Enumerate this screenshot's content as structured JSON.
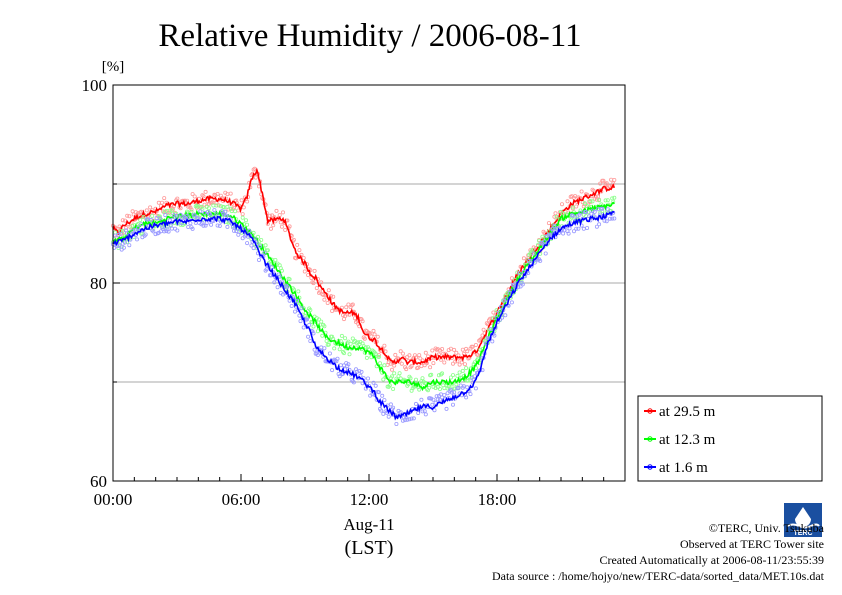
{
  "chart_data": {
    "type": "line",
    "title": "Relative Humidity / 2006-08-11",
    "ylabel": "[%]",
    "xlabel": "Aug-11",
    "xlabel2": "(LST)",
    "xlim": [
      0,
      24
    ],
    "ylim": [
      60,
      100
    ],
    "grid": true,
    "legend_position": "right",
    "x_ticks": [
      {
        "value": 0,
        "label": "00:00"
      },
      {
        "value": 6,
        "label": "06:00"
      },
      {
        "value": 12,
        "label": "12:00"
      },
      {
        "value": 18,
        "label": "18:00"
      }
    ],
    "y_ticks": [
      {
        "value": 60,
        "label": "60"
      },
      {
        "value": 80,
        "label": "80"
      },
      {
        "value": 100,
        "label": "100"
      }
    ],
    "gridlines_y": [
      70,
      80,
      90
    ],
    "series": [
      {
        "name": "at 29.5 m",
        "color": "#ff0000",
        "x": [
          0,
          0.25,
          0.5,
          1,
          1.5,
          2,
          2.5,
          3,
          3.5,
          4,
          4.5,
          5,
          5.5,
          6,
          6.25,
          6.5,
          6.75,
          7,
          7.25,
          7.5,
          7.75,
          8,
          8.25,
          8.5,
          8.75,
          9,
          9.25,
          9.5,
          9.75,
          10,
          10.25,
          10.5,
          10.75,
          11,
          11.25,
          11.5,
          11.75,
          12,
          12.25,
          12.5,
          12.75,
          13,
          13.25,
          13.5,
          13.75,
          14,
          14.5,
          15,
          15.5,
          16,
          16.5,
          17,
          17.25,
          17.5,
          17.75,
          18,
          18.5,
          19,
          19.5,
          20,
          20.5,
          21,
          21.5,
          22,
          22.5,
          23,
          23.5
        ],
        "y": [
          85.5,
          85,
          85.8,
          86.5,
          87,
          87.2,
          87.8,
          88,
          88,
          88.3,
          88.5,
          88.5,
          88.2,
          87.5,
          88.5,
          90.5,
          91.5,
          89,
          86.3,
          86.3,
          86.5,
          86.5,
          85,
          83.5,
          82.5,
          82,
          81,
          80.5,
          79.5,
          79,
          78,
          77.5,
          77,
          77,
          77,
          76.5,
          75,
          74.5,
          74.3,
          73.5,
          73,
          72,
          72,
          72.5,
          72,
          72,
          72,
          72.5,
          72.5,
          72.5,
          72.5,
          73,
          74,
          75,
          76,
          77,
          79,
          81,
          82.5,
          84,
          85.5,
          87,
          88,
          88.5,
          89,
          89.5,
          89.7
        ]
      },
      {
        "name": "at 12.3 m",
        "color": "#00ff00",
        "x": [
          0,
          0.5,
          1,
          1.5,
          2,
          2.5,
          3,
          3.5,
          4,
          4.5,
          5,
          5.5,
          6,
          6.5,
          7,
          7.5,
          8,
          8.5,
          9,
          9.5,
          10,
          10.5,
          11,
          11.5,
          12,
          12.25,
          12.5,
          12.75,
          13,
          13.5,
          14,
          14.5,
          15,
          15.5,
          16,
          16.5,
          17,
          17.5,
          18,
          18.5,
          19,
          19.5,
          20,
          20.5,
          21,
          21.5,
          22,
          22.5,
          23,
          23.5
        ],
        "y": [
          84.2,
          84.5,
          85.5,
          86,
          86,
          86.5,
          86.7,
          86.8,
          87,
          87,
          87,
          86.8,
          86,
          85,
          83.5,
          82,
          80.5,
          79,
          77.3,
          76,
          74.5,
          74,
          73.5,
          73.5,
          73,
          72.5,
          71.5,
          70.8,
          70,
          70,
          70,
          69.5,
          70,
          70,
          70,
          70.5,
          71.5,
          74,
          76.5,
          78.5,
          80.5,
          82,
          83.5,
          85,
          86.5,
          87,
          87.2,
          87.5,
          87.7,
          88
        ]
      },
      {
        "name": "at 1.6 m",
        "color": "#0000ff",
        "x": [
          0,
          0.5,
          1,
          1.5,
          2,
          2.5,
          3,
          3.5,
          4,
          4.5,
          5,
          5.5,
          6,
          6.5,
          7,
          7.5,
          8,
          8.5,
          9,
          9.25,
          9.5,
          9.75,
          10,
          10.5,
          11,
          11.5,
          12,
          12.25,
          12.5,
          12.75,
          13,
          13.25,
          13.5,
          14,
          14.5,
          15,
          15.5,
          16,
          16.5,
          17,
          17.25,
          17.5,
          18,
          18.5,
          19,
          19.5,
          20,
          20.5,
          21,
          21.5,
          22,
          22.5,
          23,
          23.5
        ],
        "y": [
          84,
          84.3,
          85,
          85.5,
          85.8,
          86,
          86.2,
          86.2,
          86.5,
          86.5,
          86.5,
          86.2,
          85.5,
          84.5,
          82.5,
          81,
          79.5,
          78,
          76,
          75,
          73.5,
          73,
          72.5,
          71.5,
          71,
          70.5,
          69.5,
          69,
          68,
          67.5,
          67,
          66.5,
          66.5,
          67,
          67.5,
          67.5,
          68,
          68.5,
          69,
          70,
          71.5,
          73.5,
          76,
          78,
          80,
          81.5,
          83,
          84.5,
          85.5,
          86,
          86.3,
          86.5,
          86.7,
          87
        ]
      }
    ]
  },
  "credits": {
    "copyright": "©TERC, Univ. Tsukuba",
    "observed": "Observed at TERC Tower site",
    "created": "Created Automatically at 2006-08-11/23:55:39",
    "source": "Data source : /home/hojyo/new/TERC-data/sorted_data/MET.10s.dat"
  },
  "logo": {
    "icon": "terc-logo-icon",
    "text": "TERC",
    "color": "#1a4fa0"
  }
}
